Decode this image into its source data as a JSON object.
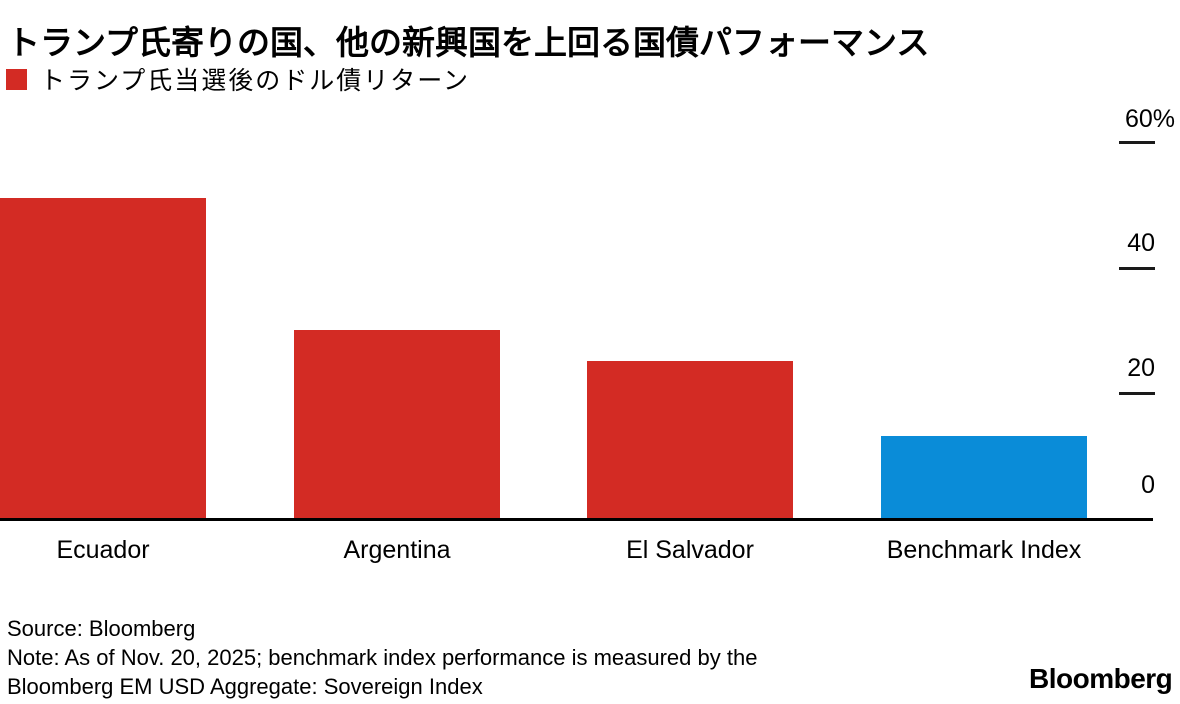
{
  "title": "トランプ氏寄りの国、他の新興国を上回る国債パフォーマンス",
  "legend": {
    "label": "トランプ氏当選後のドル債リターン",
    "swatch_color": "#d32b24"
  },
  "chart_data": {
    "type": "bar",
    "categories": [
      "Ecuador",
      "Argentina",
      "El Salvador",
      "Benchmark Index"
    ],
    "values": [
      51,
      30,
      25,
      13
    ],
    "bar_colors": [
      "#d32b24",
      "#d32b24",
      "#d32b24",
      "#0a8cd8"
    ],
    "series_name": "トランプ氏当選後のドル債リターン",
    "unit": "%",
    "ylim": [
      0,
      60
    ],
    "y_ticks": [
      {
        "label": "60%",
        "value": 60
      },
      {
        "label": "40",
        "value": 40
      },
      {
        "label": "20",
        "value": 20
      },
      {
        "label": "0",
        "value": 0
      }
    ],
    "grid": false,
    "legend_position": "top-left",
    "axis_side": "right"
  },
  "footer": {
    "source": "Source: Bloomberg",
    "note_line1": "Note: As of Nov. 20, 2025; benchmark index performance is measured by the",
    "note_line2": "Bloomberg EM USD Aggregate: Sovereign Index",
    "brand": "Bloomberg"
  }
}
